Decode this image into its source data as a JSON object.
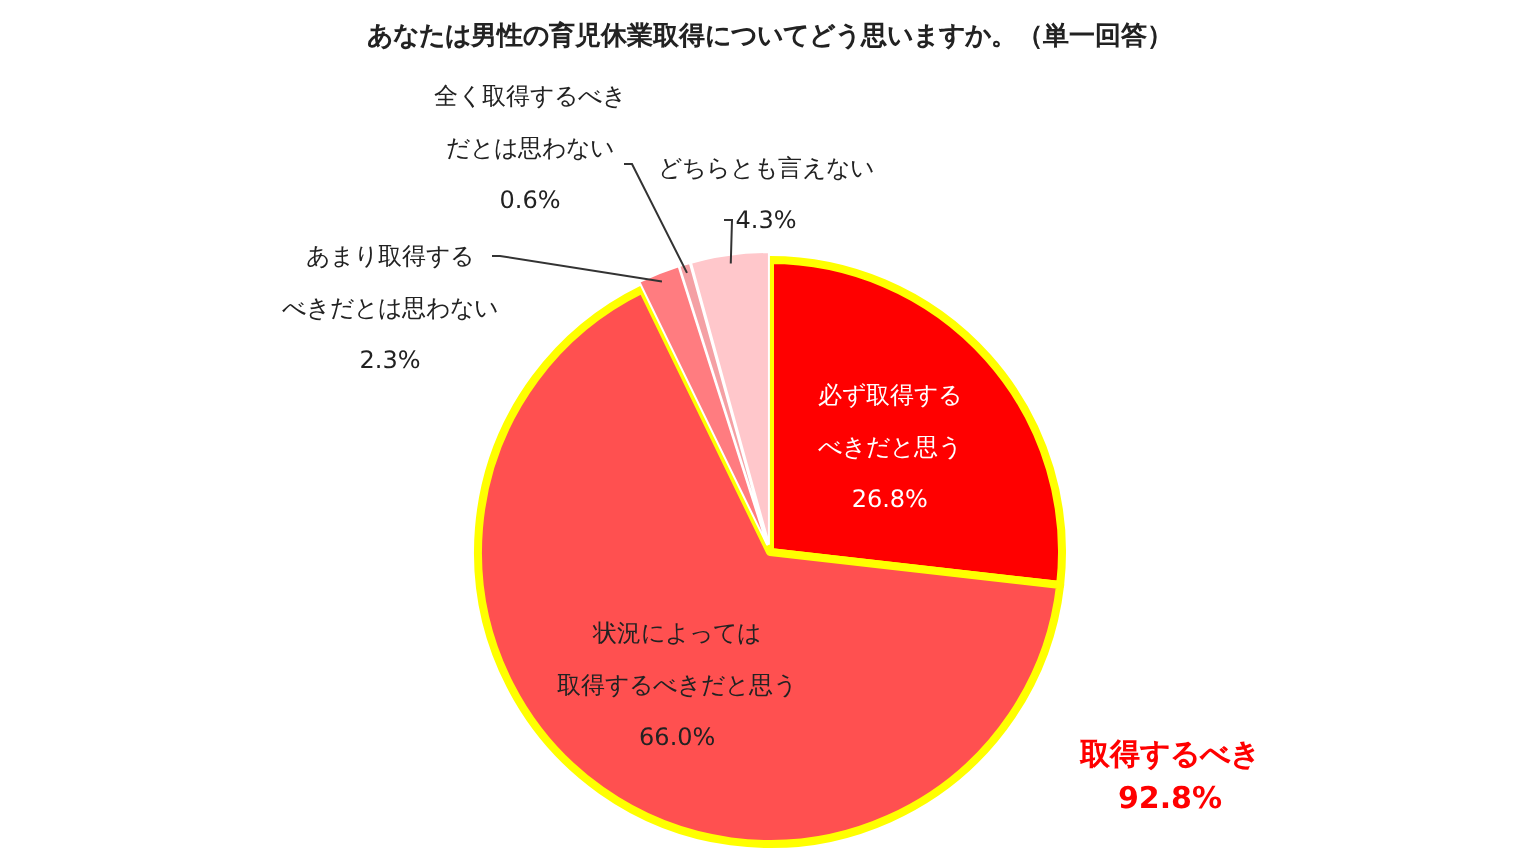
{
  "chart_data": {
    "type": "pie",
    "title": "あなたは男性の育児休業取得についてどう思いますか。（単一回答）",
    "categories": [
      "必ず取得するべきだと思う",
      "状況によっては取得するべきだと思う",
      "あまり取得するべきだとは思わない",
      "全く取得するべきだとは思わない",
      "どちらとも言えない"
    ],
    "values": [
      26.8,
      66.0,
      2.3,
      0.6,
      4.3
    ],
    "colors": [
      "#ff0000",
      "#ff5050",
      "#ff7c80",
      "#f4a0a4",
      "#ffc7cb"
    ],
    "value_labels": [
      "26.8%",
      "66.0%",
      "2.3%",
      "0.6%",
      "4.3%"
    ],
    "annotations": [
      "取得するべき\n92.8%"
    ]
  }
}
